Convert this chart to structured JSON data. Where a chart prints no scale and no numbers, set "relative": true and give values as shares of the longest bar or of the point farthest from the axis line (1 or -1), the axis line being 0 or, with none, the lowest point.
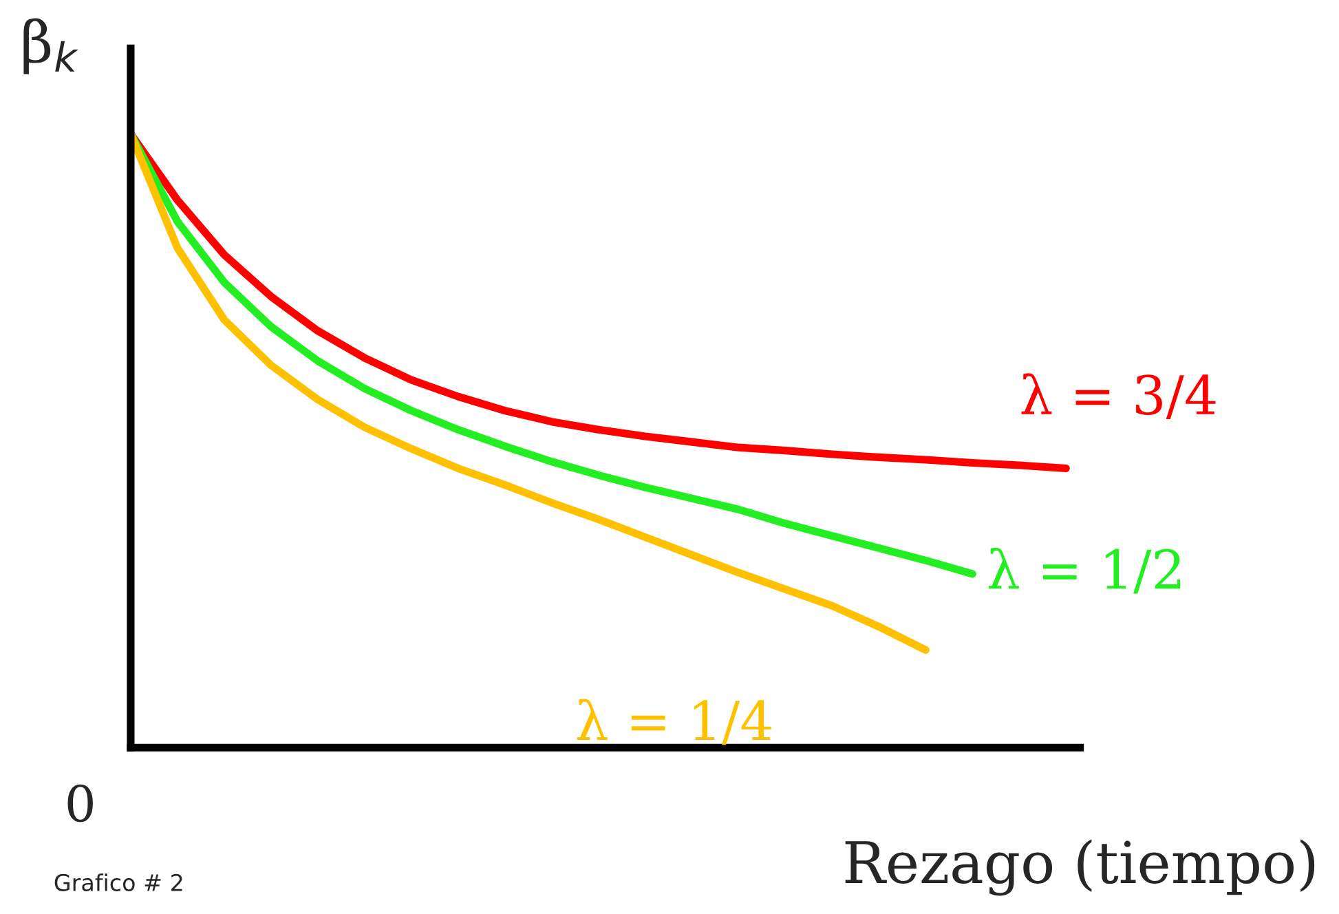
{
  "chart_data": {
    "type": "line",
    "relative": true,
    "xlabel": "Rezago (tiempo)",
    "ylabel": "β$_{k}$",
    "annotations": [
      "0",
      "Grafico # 2"
    ],
    "legend": false,
    "grid": false,
    "categories": [
      null,
      null,
      null,
      null,
      null,
      null,
      null,
      null,
      null,
      null,
      null,
      null,
      null,
      null,
      null,
      null,
      null,
      null,
      null,
      null,
      null
    ],
    "series": [
      {
        "name": "λ = 3/4",
        "color": "#ff0000",
        "values": [
          1.0,
          0.892,
          0.803,
          0.735,
          0.679,
          0.635,
          0.599,
          0.572,
          0.549,
          0.531,
          0.518,
          0.507,
          0.498,
          0.489,
          0.484,
          0.478,
          0.473,
          0.469,
          0.464,
          0.46,
          0.455
        ]
      },
      {
        "name": "λ = 1/2",
        "color": "#22ee22",
        "values": [
          1.0,
          0.857,
          0.758,
          0.686,
          0.63,
          0.585,
          0.549,
          0.518,
          0.491,
          0.466,
          0.444,
          0.424,
          0.406,
          0.388,
          0.365,
          0.345,
          0.325,
          0.305,
          0.283,
          null,
          null
        ]
      },
      {
        "name": "λ = 1/4",
        "color": "#ffc000",
        "values": [
          1.0,
          0.814,
          0.697,
          0.623,
          0.567,
          0.522,
          0.487,
          0.455,
          0.428,
          0.399,
          0.372,
          0.343,
          0.314,
          0.285,
          0.258,
          0.231,
          0.197,
          0.159,
          null,
          null,
          null
        ]
      }
    ]
  }
}
